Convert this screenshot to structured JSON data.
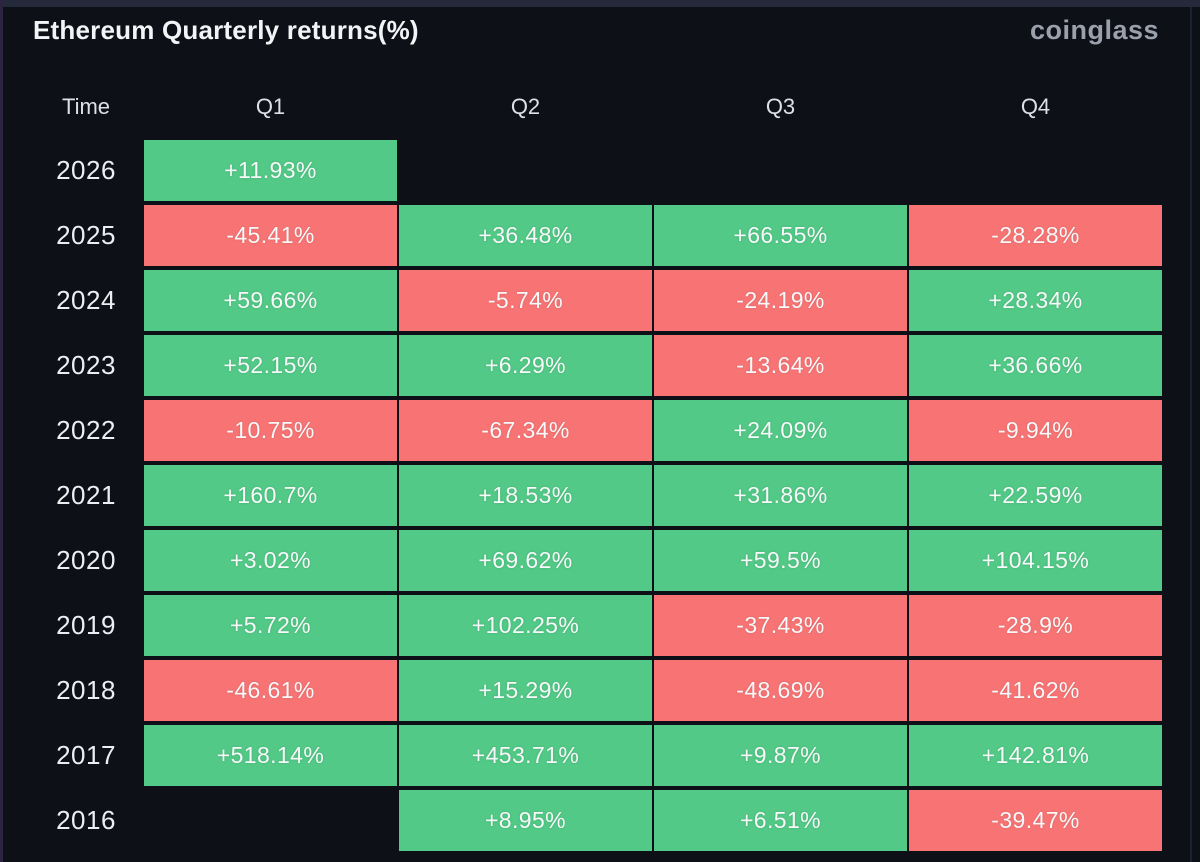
{
  "header": {
    "title": "Ethereum Quarterly returns(%)",
    "brand": "coinglass"
  },
  "colors": {
    "positive": "#52c986",
    "negative": "#f87474",
    "background": "#0d1016",
    "top_strip": "#252a3a",
    "left_strip": "#2b2340",
    "cell_text": "#f7f9fa"
  },
  "chart_data": {
    "type": "heatmap",
    "title": "Ethereum Quarterly returns(%)",
    "columns": [
      "Time",
      "Q1",
      "Q2",
      "Q3",
      "Q4"
    ],
    "legend_position": "none",
    "grid": false,
    "rows": [
      {
        "year": "2026",
        "values": [
          "+11.93%",
          null,
          null,
          null
        ]
      },
      {
        "year": "2025",
        "values": [
          "-45.41%",
          "+36.48%",
          "+66.55%",
          "-28.28%"
        ]
      },
      {
        "year": "2024",
        "values": [
          "+59.66%",
          "-5.74%",
          "-24.19%",
          "+28.34%"
        ]
      },
      {
        "year": "2023",
        "values": [
          "+52.15%",
          "+6.29%",
          "-13.64%",
          "+36.66%"
        ]
      },
      {
        "year": "2022",
        "values": [
          "-10.75%",
          "-67.34%",
          "+24.09%",
          "-9.94%"
        ]
      },
      {
        "year": "2021",
        "values": [
          "+160.7%",
          "+18.53%",
          "+31.86%",
          "+22.59%"
        ]
      },
      {
        "year": "2020",
        "values": [
          "+3.02%",
          "+69.62%",
          "+59.5%",
          "+104.15%"
        ]
      },
      {
        "year": "2019",
        "values": [
          "+5.72%",
          "+102.25%",
          "-37.43%",
          "-28.9%"
        ]
      },
      {
        "year": "2018",
        "values": [
          "-46.61%",
          "+15.29%",
          "-48.69%",
          "-41.62%"
        ]
      },
      {
        "year": "2017",
        "values": [
          "+518.14%",
          "+453.71%",
          "+9.87%",
          "+142.81%"
        ]
      },
      {
        "year": "2016",
        "values": [
          null,
          "+8.95%",
          "+6.51%",
          "-39.47%"
        ]
      }
    ]
  }
}
